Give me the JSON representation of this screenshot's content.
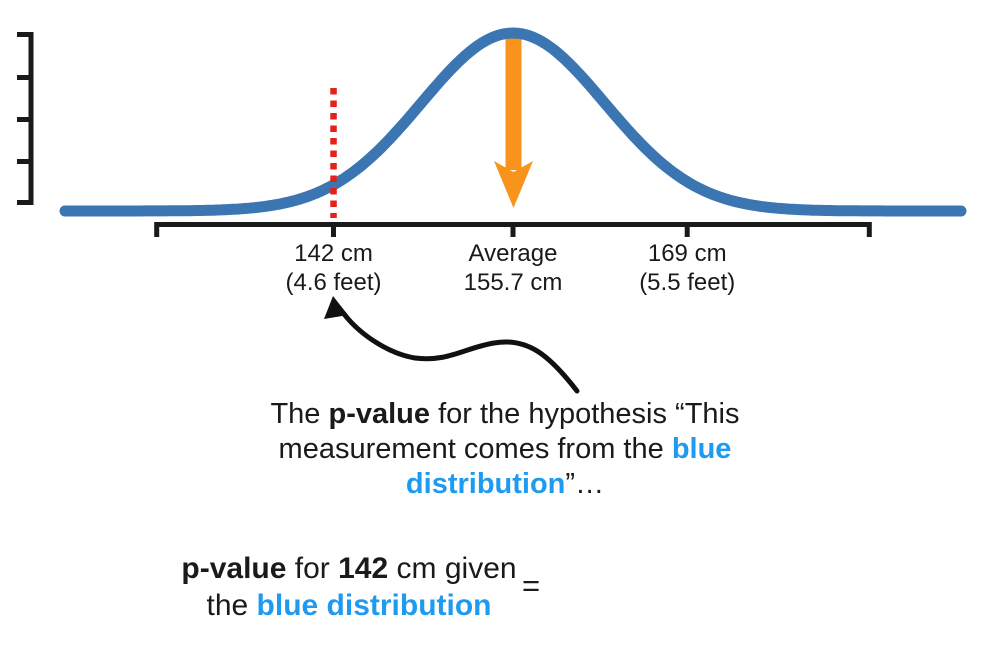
{
  "chart_data": {
    "type": "line",
    "title": "",
    "description": "Normal (Gaussian) distribution of female heights with a red dashed marker at 142 cm, an orange arrow at the mean, and p-value annotation",
    "distribution": {
      "mean_cm": 155.7,
      "sd_cm": 7.0
    },
    "x_axis_range_cm": [
      128.5,
      182.9
    ],
    "curve_range_cm": [
      121.5,
      190.0
    ],
    "x_ticks": [
      {
        "cm": 142,
        "line1": "142 cm",
        "line2": "(4.6 feet)"
      },
      {
        "cm": 155.7,
        "line1": "Average",
        "line2": "155.7 cm"
      },
      {
        "cm": 169,
        "line1": "169 cm",
        "line2": "(5.5 feet)"
      }
    ],
    "markers": {
      "red_dashed_line_cm": 142,
      "orange_mean_arrow_cm": 155.7
    },
    "grid": false,
    "legend": false,
    "y_axis_tick_count": 5
  },
  "colors": {
    "curve_blue": "#3B76B3",
    "arrow_orange": "#F8941C",
    "marker_red": "#E32119",
    "axis_black": "#1a1a1a",
    "text_black": "#1a1a1a",
    "text_blue": "#1E9BF0"
  },
  "caption": {
    "line1": [
      "The ",
      "p-value",
      " for the hypothesis “This"
    ],
    "line2": [
      "measurement comes from the ",
      "blue"
    ],
    "line3": [
      "distribution",
      "”…"
    ]
  },
  "equation": {
    "line1": [
      "p-value",
      " for ",
      "142",
      " cm given"
    ],
    "line2": [
      "the ",
      "blue distribution"
    ],
    "equals": "="
  }
}
